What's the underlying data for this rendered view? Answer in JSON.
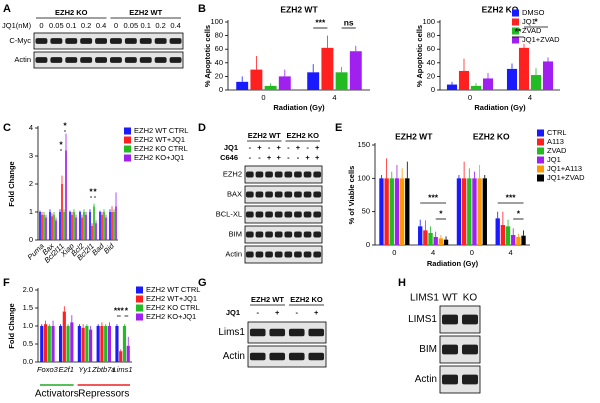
{
  "panel_labels": [
    "A",
    "B",
    "C",
    "D",
    "E",
    "F",
    "G",
    "H"
  ],
  "chart_data": [
    {
      "type": "bar",
      "title": "EZH2 WT",
      "ylabel": "% Apoptotic cells",
      "xlabel": "Radiation (Gy)",
      "categories": [
        "0",
        "4"
      ],
      "ylim": [
        0,
        100
      ],
      "yticks": [
        0,
        20,
        40,
        60,
        80,
        100
      ],
      "series": [
        {
          "color": "#1a1aff",
          "values": [
            12,
            26
          ],
          "errors": [
            8,
            12
          ]
        },
        {
          "color": "#ff2020",
          "values": [
            30,
            62
          ],
          "errors": [
            20,
            18
          ]
        },
        {
          "color": "#22bb22",
          "values": [
            6,
            26
          ],
          "errors": [
            4,
            8
          ]
        },
        {
          "color": "#a020f0",
          "values": [
            20,
            57
          ],
          "errors": [
            10,
            8
          ]
        }
      ],
      "annotations": [
        "***",
        "ns"
      ]
    },
    {
      "type": "bar",
      "title": "EZH2 KO",
      "ylabel": "% Apoptotic cells",
      "xlabel": "Radiation (Gy)",
      "categories": [
        "0",
        "4"
      ],
      "ylim": [
        0,
        100
      ],
      "yticks": [
        0,
        20,
        40,
        60,
        80,
        100
      ],
      "legend": "upper right",
      "series": [
        {
          "name": "DMSO",
          "color": "#1a1aff",
          "values": [
            8,
            31
          ],
          "errors": [
            4,
            8
          ]
        },
        {
          "name": "JQ1",
          "color": "#ff2020",
          "values": [
            28,
            62
          ],
          "errors": [
            18,
            6
          ]
        },
        {
          "name": "ZVAD",
          "color": "#22bb22",
          "values": [
            6,
            22
          ],
          "errors": [
            4,
            10
          ]
        },
        {
          "name": "JQ1+ZVAD",
          "color": "#a020f0",
          "values": [
            17,
            42
          ],
          "errors": [
            8,
            6
          ]
        }
      ],
      "annotations": [
        "**",
        "*"
      ]
    },
    {
      "type": "bar",
      "ylabel": "Fold Change",
      "categories": [
        "Puma",
        "Bax",
        "Bcl2l11",
        "Xiap",
        "Bcl2",
        "Bcl2l1",
        "Bad",
        "Bid"
      ],
      "ylim": [
        0,
        4
      ],
      "yticks": [
        0,
        1,
        2,
        3,
        4
      ],
      "legend": "upper right",
      "series": [
        {
          "name": "EZH2 WT CTRL",
          "color": "#1a1aff",
          "values": [
            1,
            1,
            1,
            1,
            1,
            1,
            1,
            1
          ],
          "errors": [
            0.05,
            0.1,
            0.1,
            0.05,
            0.05,
            0.1,
            0.05,
            0.1
          ]
        },
        {
          "name": "EZH2 WT+JQ1",
          "color": "#ff2020",
          "values": [
            0.9,
            0.85,
            2.0,
            0.9,
            0.8,
            0.5,
            0.9,
            1.0
          ],
          "errors": [
            0.1,
            0.1,
            0.3,
            0.1,
            0.1,
            0.1,
            0.1,
            0.2
          ]
        },
        {
          "name": "EZH2 KO CTRL",
          "color": "#22bb22",
          "values": [
            0.9,
            0.9,
            1.0,
            1.0,
            1.0,
            1.2,
            1.0,
            1.0
          ],
          "errors": [
            0.1,
            0.1,
            0.1,
            0.1,
            0.1,
            0.1,
            0.1,
            0.1
          ]
        },
        {
          "name": "EZH2 KO+JQ1",
          "color": "#a020f0",
          "values": [
            0.8,
            0.7,
            3.2,
            0.8,
            0.9,
            0.6,
            0.8,
            1.2
          ],
          "errors": [
            0.1,
            0.1,
            0.6,
            0.1,
            0.1,
            0.1,
            0.1,
            0.5
          ]
        }
      ],
      "annotations": [
        "*",
        "*",
        "*",
        "*"
      ]
    },
    {
      "type": "bar",
      "ylabel": "% of Viable cells",
      "xlabel": "Radiation (Gy)",
      "group_titles": [
        "EZH2 WT",
        "EZH2 KO"
      ],
      "categories": [
        "0",
        "4",
        "0",
        "4"
      ],
      "ylim": [
        0,
        150
      ],
      "yticks": [
        0,
        50,
        100,
        150
      ],
      "legend": "upper right",
      "series": [
        {
          "name": "CTRL",
          "color": "#1a1aff",
          "values": [
            100,
            28,
            100,
            40
          ],
          "errors": [
            5,
            10,
            5,
            10
          ]
        },
        {
          "name": "A113",
          "color": "#ff2020",
          "values": [
            100,
            22,
            100,
            30
          ],
          "errors": [
            30,
            15,
            25,
            20
          ]
        },
        {
          "name": "ZVAD",
          "color": "#22bb22",
          "values": [
            100,
            18,
            100,
            28
          ],
          "errors": [
            10,
            10,
            15,
            10
          ]
        },
        {
          "name": "JQ1",
          "color": "#a020f0",
          "values": [
            100,
            12,
            100,
            15
          ],
          "errors": [
            20,
            8,
            10,
            10
          ]
        },
        {
          "name": "JQ1+A113",
          "color": "#ff9900",
          "values": [
            100,
            10,
            100,
            12
          ],
          "errors": [
            15,
            5,
            20,
            5
          ]
        },
        {
          "name": "JQ1+ZVAD",
          "color": "#000000",
          "values": [
            100,
            8,
            100,
            14
          ],
          "errors": [
            25,
            5,
            5,
            8
          ]
        }
      ],
      "annotations": [
        "***",
        "*",
        "***",
        "*"
      ]
    },
    {
      "type": "bar",
      "ylabel": "Fold Change",
      "categories": [
        "Foxo3",
        "E2f1",
        "Yy1",
        "Zbtb7a",
        "Lims1"
      ],
      "ylim": [
        0,
        2
      ],
      "yticks": [
        {
          "value": 0,
          "label": "0.0"
        },
        0.5,
        {
          "value": 1,
          "label": "1.0"
        },
        1.5,
        {
          "value": 2,
          "label": "2.0"
        }
      ],
      "legend": "upper right",
      "series": [
        {
          "name": "EZH2 WT CTRL",
          "color": "#1a1aff",
          "values": [
            1,
            1,
            1,
            1,
            1
          ],
          "errors": [
            0.05,
            0.05,
            0.05,
            0.05,
            0.05
          ]
        },
        {
          "name": "EZH2 WT+JQ1",
          "color": "#ff2020",
          "values": [
            1.05,
            1.4,
            0.95,
            1.0,
            0.3
          ],
          "errors": [
            0.1,
            0.15,
            0.1,
            0.1,
            0.05
          ]
        },
        {
          "name": "EZH2 KO CTRL",
          "color": "#22bb22",
          "values": [
            1,
            1,
            1,
            1,
            1
          ],
          "errors": [
            0.05,
            0.05,
            0.05,
            0.05,
            0.05
          ]
        },
        {
          "name": "EZH2 KO+JQ1",
          "color": "#a020f0",
          "values": [
            1.0,
            1.1,
            0.9,
            1.0,
            0.45
          ],
          "errors": [
            0.15,
            0.2,
            0.1,
            0.1,
            0.25
          ]
        }
      ],
      "group_labels": [
        {
          "text": "Activators",
          "color": "#22aa22"
        },
        {
          "text": "Repressors",
          "color": "#ee2020"
        }
      ],
      "annotations": [
        "***",
        "*"
      ]
    }
  ],
  "blots": [
    {
      "groups": [
        "EZH2 KO",
        "EZH2 WT"
      ],
      "lane_header": "JQ1(nM)",
      "lanes": [
        "0",
        "0.05",
        "0.1",
        "0.2",
        "0.4",
        "0",
        "0.05",
        "0.1",
        "0.2",
        "0.4"
      ],
      "rows": [
        "C-Myc",
        "Actin"
      ]
    },
    {
      "groups": [
        "EZH2 WT",
        "EZH2 KO"
      ],
      "treatments": [
        {
          "name": "JQ1",
          "lanes": [
            "-",
            "+",
            "-",
            "+",
            "-",
            "+",
            "-",
            "+"
          ]
        },
        {
          "name": "C646",
          "lanes": [
            "-",
            "-",
            "+",
            "+",
            "-",
            "-",
            "+",
            "+"
          ]
        }
      ],
      "rows": [
        "EZH2",
        "BAX",
        "BCL-XL",
        "BIM",
        "Actin"
      ]
    },
    {
      "groups": [
        "EZH2 WT",
        "EZH2 KO"
      ],
      "treatments": [
        {
          "name": "JQ1",
          "lanes": [
            "-",
            "+",
            "-",
            "+"
          ]
        }
      ],
      "rows": [
        "Lims1",
        "Actin"
      ]
    },
    {
      "lane_header": "LIMS1",
      "lanes": [
        "WT",
        "KO"
      ],
      "rows": [
        "LIMS1",
        "BIM",
        "Actin"
      ]
    }
  ]
}
